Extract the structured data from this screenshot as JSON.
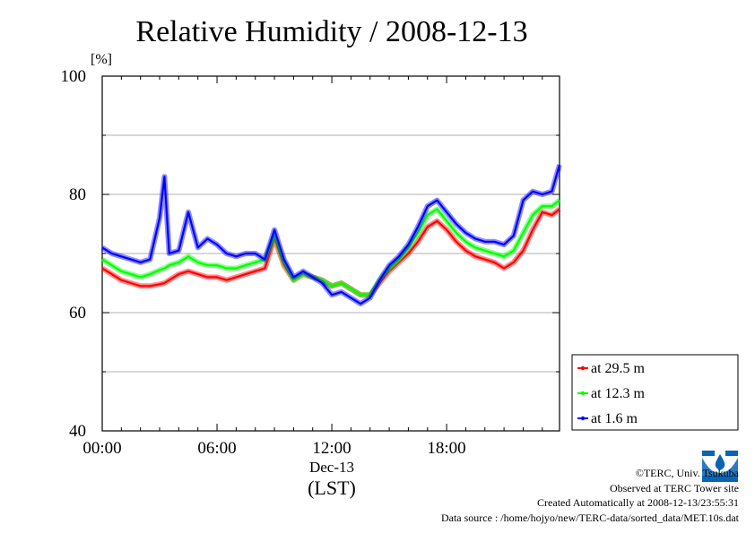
{
  "chart_data": {
    "type": "line",
    "title": "Relative Humidity / 2008-12-13",
    "yunit": "[%]",
    "xlabel_date": "Dec-13",
    "xlabel_tz": "(LST)",
    "x_ticks": [
      "00:00",
      "06:00",
      "12:00",
      "18:00"
    ],
    "y_ticks": [
      "40",
      "60",
      "80",
      "100"
    ],
    "ylim": [
      40,
      100
    ],
    "xlim_hours": [
      0,
      23.9
    ],
    "grid": true,
    "legend_position": "right-bottom",
    "x_hours": [
      0,
      0.5,
      1,
      1.5,
      2,
      2.5,
      3,
      3.25,
      3.5,
      4,
      4.5,
      5,
      5.5,
      6,
      6.5,
      7,
      7.5,
      8,
      8.5,
      9,
      9.5,
      10,
      10.5,
      11,
      11.5,
      12,
      12.5,
      13,
      13.5,
      14,
      14.5,
      15,
      15.5,
      16,
      16.5,
      17,
      17.5,
      18,
      18.5,
      19,
      19.5,
      20,
      20.5,
      21,
      21.5,
      22,
      22.5,
      23,
      23.5,
      23.9
    ],
    "series": [
      {
        "name": "at 29.5 m",
        "color": "#ff0000",
        "values": [
          67.5,
          66.5,
          65.5,
          65,
          64.5,
          64.5,
          64.8,
          65,
          65.5,
          66.5,
          67,
          66.5,
          66,
          66,
          65.5,
          66,
          66.5,
          67,
          67.5,
          72.5,
          68,
          65.5,
          66.5,
          66,
          65.5,
          64.5,
          65,
          64,
          63,
          63,
          65,
          67,
          68.5,
          70,
          72,
          74.5,
          75.5,
          74,
          72,
          70.5,
          69.5,
          69,
          68.5,
          67.5,
          68.5,
          70.5,
          74,
          77,
          76.5,
          77.5
        ]
      },
      {
        "name": "at 12.3 m",
        "color": "#00ff00",
        "values": [
          69,
          68,
          67,
          66.5,
          66,
          66.5,
          67.2,
          67.5,
          68,
          68.5,
          69.5,
          68.5,
          68,
          68,
          67.5,
          67.5,
          68,
          68.5,
          69,
          73,
          68.5,
          65.5,
          66.5,
          66,
          65.5,
          64.5,
          65,
          64,
          63,
          63,
          65.5,
          67.5,
          69,
          71,
          73.5,
          76.5,
          77.5,
          75.5,
          73.5,
          72,
          71,
          70.5,
          70,
          69.5,
          70.5,
          73.5,
          76.5,
          78,
          78,
          79
        ]
      },
      {
        "name": "at 1.6 m",
        "color": "#0000ff",
        "values": [
          71,
          70,
          69.5,
          69,
          68.5,
          69,
          76,
          83,
          70,
          70.5,
          77,
          71,
          72.5,
          71.5,
          70,
          69.5,
          70,
          70,
          69,
          74,
          69,
          66,
          67,
          66,
          65,
          63,
          63.5,
          62.5,
          61.5,
          62.5,
          65.5,
          68,
          69.5,
          71.5,
          74.5,
          78,
          79,
          77,
          75,
          73.5,
          72.5,
          72,
          72,
          71.5,
          73,
          79,
          80.5,
          80,
          80.5,
          85
        ]
      }
    ]
  },
  "footer": {
    "copyright": "©TERC, Univ. Tsukuba",
    "site": "Observed at TERC Tower site",
    "created": "Created Automatically at 2008-12-13/23:55:31",
    "source": "Data source : /home/hojyo/new/TERC-data/sorted_data/MET.10s.dat",
    "logo_text": "TERC"
  }
}
